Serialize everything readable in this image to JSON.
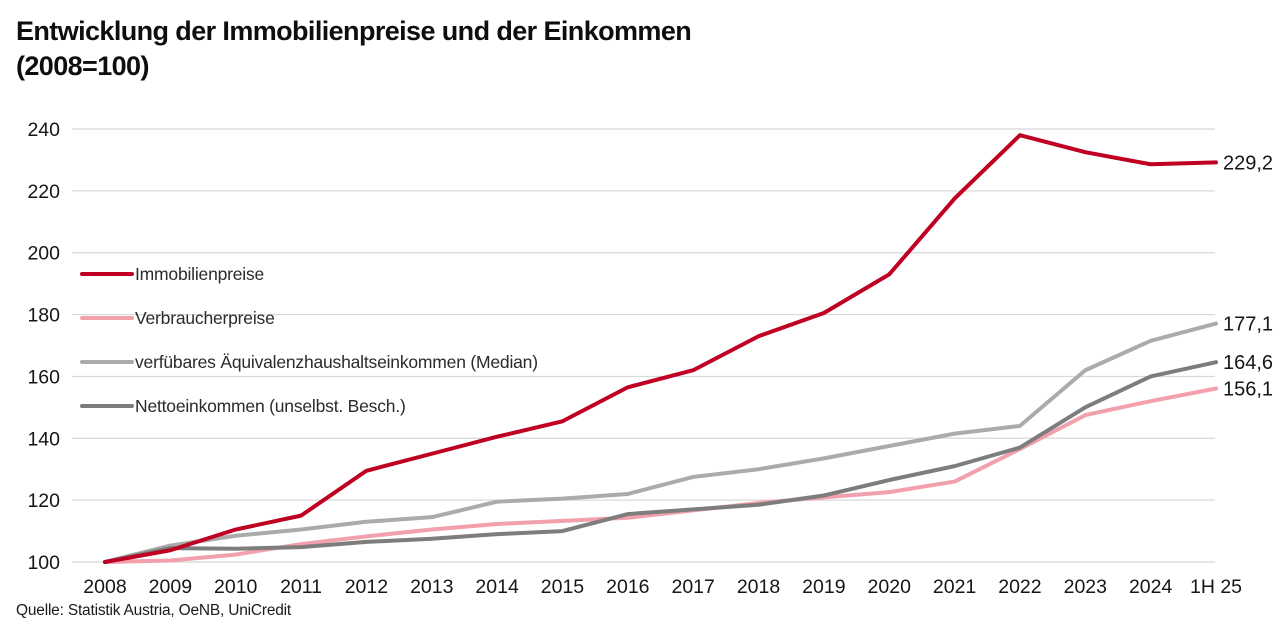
{
  "title": {
    "line1": "Entwicklung der Immobilienpreise und der Einkommen",
    "line2": "(2008=100)"
  },
  "source": "Quelle: Statistik Austria, OeNB, UniCredit",
  "chart_data": {
    "type": "line",
    "x_categories": [
      "2008",
      "2009",
      "2010",
      "2011",
      "2012",
      "2013",
      "2014",
      "2015",
      "2016",
      "2017",
      "2018",
      "2019",
      "2020",
      "2021",
      "2022",
      "2023",
      "2024",
      "1H 25"
    ],
    "series": [
      {
        "name": "Immobilienpreise",
        "color": "#c00023",
        "end_label": "229,2",
        "end_label_color": "#3c3c3c",
        "values": [
          100,
          103.8,
          110.5,
          115,
          129.5,
          135,
          140.5,
          145.5,
          156.5,
          162,
          173,
          180.5,
          193,
          217.5,
          238,
          232.5,
          228.6,
          229.2
        ]
      },
      {
        "name": "Verbraucherpreise",
        "color": "#f2a0ac",
        "end_label": "156,1",
        "end_label_color": "#454545",
        "values": [
          100,
          100.5,
          102.4,
          105.8,
          108.3,
          110.5,
          112.3,
          113.3,
          114.3,
          116.7,
          119.1,
          120.9,
          122.6,
          126,
          136.5,
          147.5,
          152,
          156.1
        ]
      },
      {
        "name": "verfübares Äquivalenzhaushaltseinkommen (Median)",
        "color": "#ababab",
        "end_label": "177,1",
        "end_label_color": "#a3a3a3",
        "values": [
          100,
          105.3,
          108.5,
          110.5,
          113,
          114.5,
          119.5,
          120.5,
          122,
          127.5,
          130,
          133.5,
          137.5,
          141.5,
          144,
          162,
          171.5,
          177.1
        ]
      },
      {
        "name": "Nettoeinkommen (unselbst. Besch.)",
        "color": "#7d7d7d",
        "end_label": "164,6",
        "end_label_color": "#6e6e6e",
        "values": [
          100,
          104.5,
          104.3,
          104.8,
          106.5,
          107.5,
          109,
          110,
          115.5,
          117,
          118.5,
          121.5,
          126.5,
          131,
          137,
          150,
          160,
          164.6
        ]
      }
    ],
    "ylim": [
      100,
      240
    ],
    "yticks": [
      100,
      120,
      140,
      160,
      180,
      200,
      220,
      240
    ],
    "grid": "horizontal",
    "grid_color": "#d8d8d8",
    "legend_position": "top-left-inside",
    "xlabel": "",
    "ylabel": ""
  }
}
